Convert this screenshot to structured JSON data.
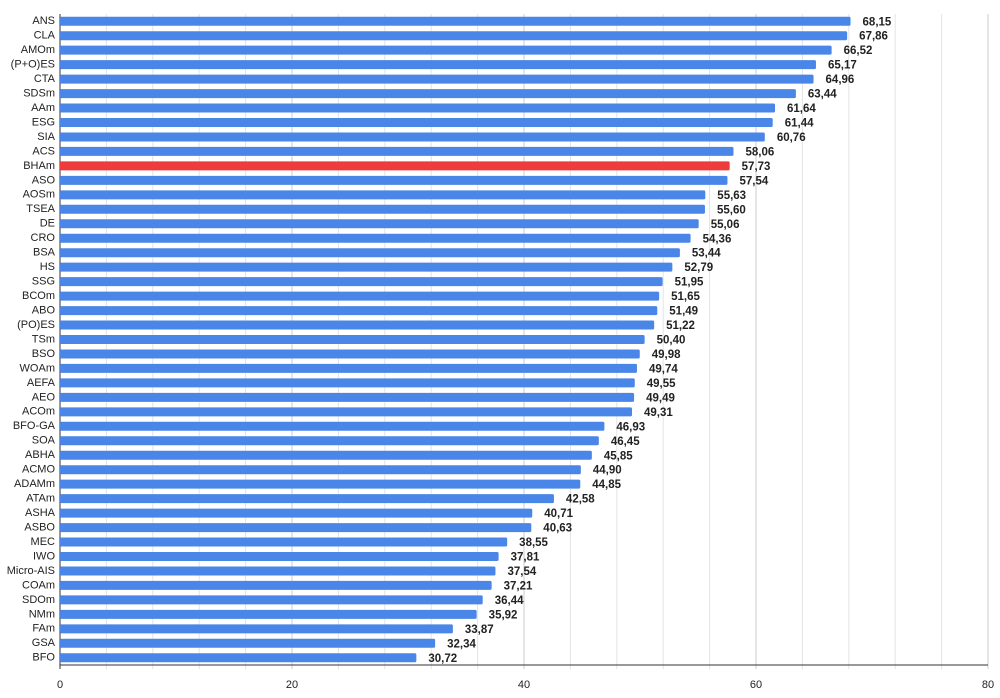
{
  "chart_data": {
    "type": "bar",
    "orientation": "horizontal",
    "categories": [
      "ANS",
      "CLA",
      "AMOm",
      "(P+O)ES",
      "CTA",
      "SDSm",
      "AAm",
      "ESG",
      "SIA",
      "ACS",
      "BHAm",
      "ASO",
      "AOSm",
      "TSEA",
      "DE",
      "CRO",
      "BSA",
      "HS",
      "SSG",
      "BCOm",
      "ABO",
      "(PO)ES",
      "TSm",
      "BSO",
      "WOAm",
      "AEFA",
      "AEO",
      "ACOm",
      "BFO-GA",
      "SOA",
      "ABHA",
      "ACMO",
      "ADAMm",
      "ATAm",
      "ASHA",
      "ASBO",
      "MEC",
      "IWO",
      "Micro-AIS",
      "COAm",
      "SDOm",
      "NMm",
      "FAm",
      "GSA",
      "BFO"
    ],
    "values": [
      68.15,
      67.86,
      66.52,
      65.17,
      64.96,
      63.44,
      61.64,
      61.44,
      60.76,
      58.06,
      57.73,
      57.54,
      55.63,
      55.6,
      55.06,
      54.36,
      53.44,
      52.79,
      51.95,
      51.65,
      51.49,
      51.22,
      50.4,
      49.98,
      49.74,
      49.55,
      49.49,
      49.31,
      46.93,
      46.45,
      45.85,
      44.9,
      44.85,
      42.58,
      40.71,
      40.63,
      38.55,
      37.81,
      37.54,
      37.21,
      36.44,
      35.92,
      33.87,
      32.34,
      30.72
    ],
    "value_labels": [
      "68,15",
      "67,86",
      "66,52",
      "65,17",
      "64,96",
      "63,44",
      "61,64",
      "61,44",
      "60,76",
      "58,06",
      "57,73",
      "57,54",
      "55,63",
      "55,60",
      "55,06",
      "54,36",
      "53,44",
      "52,79",
      "51,95",
      "51,65",
      "51,49",
      "51,22",
      "50,40",
      "49,98",
      "49,74",
      "49,55",
      "49,49",
      "49,31",
      "46,93",
      "46,45",
      "45,85",
      "44,90",
      "44,85",
      "42,58",
      "40,71",
      "40,63",
      "38,55",
      "37,81",
      "37,54",
      "37,21",
      "36,44",
      "35,92",
      "33,87",
      "32,34",
      "30,72"
    ],
    "colors": [
      "#4a86e8",
      "#4a86e8",
      "#4a86e8",
      "#4a86e8",
      "#4a86e8",
      "#4a86e8",
      "#4a86e8",
      "#4a86e8",
      "#4a86e8",
      "#4a86e8",
      "#ee3b3b",
      "#4a86e8",
      "#4a86e8",
      "#4a86e8",
      "#4a86e8",
      "#4a86e8",
      "#4a86e8",
      "#4a86e8",
      "#4a86e8",
      "#4a86e8",
      "#4a86e8",
      "#4a86e8",
      "#4a86e8",
      "#4a86e8",
      "#4a86e8",
      "#4a86e8",
      "#4a86e8",
      "#4a86e8",
      "#4a86e8",
      "#4a86e8",
      "#4a86e8",
      "#4a86e8",
      "#4a86e8",
      "#4a86e8",
      "#4a86e8",
      "#4a86e8",
      "#4a86e8",
      "#4a86e8",
      "#4a86e8",
      "#4a86e8",
      "#4a86e8",
      "#4a86e8",
      "#4a86e8",
      "#4a86e8",
      "#4a86e8"
    ],
    "label_color": "#4a86e8",
    "xlim": [
      0,
      80
    ],
    "xticks": [
      0,
      20,
      40,
      60,
      80
    ],
    "grid": true,
    "minor_grid_step": 4
  }
}
